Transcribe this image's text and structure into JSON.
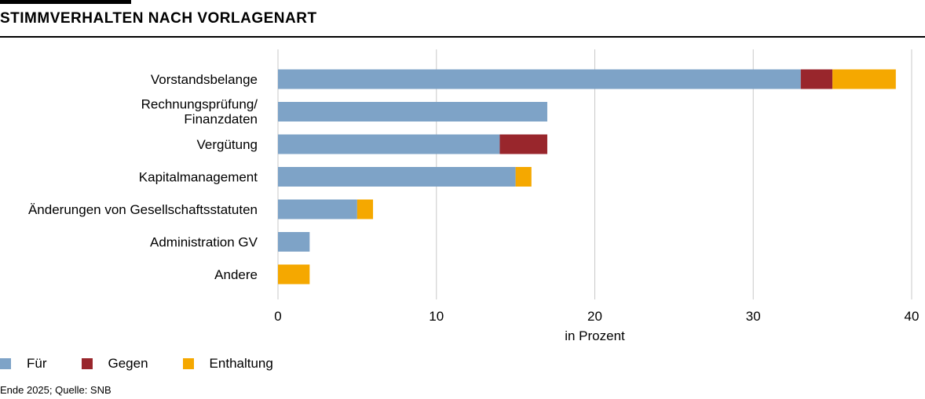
{
  "header": {
    "title": "STIMMVERHALTEN NACH VORLAGENART"
  },
  "chart_data": {
    "type": "bar",
    "orientation": "horizontal",
    "stacked": true,
    "title": "STIMMVERHALTEN NACH VORLAGENART",
    "categories": [
      [
        "Vorstandsbelange"
      ],
      [
        "Rechnungsprüfung/",
        "Finanzdaten"
      ],
      [
        "Vergütung"
      ],
      [
        "Kapitalmanagement"
      ],
      [
        "Änderungen von Gesellschaftsstatuten"
      ],
      [
        "Administration GV"
      ],
      [
        "Andere"
      ]
    ],
    "series": [
      {
        "name": "Für",
        "color": "#7ea3c7",
        "values": [
          33,
          17,
          14,
          15,
          5,
          2,
          0
        ]
      },
      {
        "name": "Gegen",
        "color": "#99262c",
        "values": [
          2,
          0,
          3,
          0,
          0,
          0,
          0
        ]
      },
      {
        "name": "Enthaltung",
        "color": "#f5a800",
        "values": [
          4,
          0,
          0,
          1,
          1,
          0,
          2
        ]
      }
    ],
    "xlim": [
      0,
      40
    ],
    "xticks": [
      0,
      10,
      20,
      30,
      40
    ],
    "xlabel": "in Prozent",
    "ylabel": "",
    "grid": "vertical",
    "legend_position": "bottom-left"
  },
  "footer": {
    "source": "Ende 2025; Quelle: SNB"
  }
}
